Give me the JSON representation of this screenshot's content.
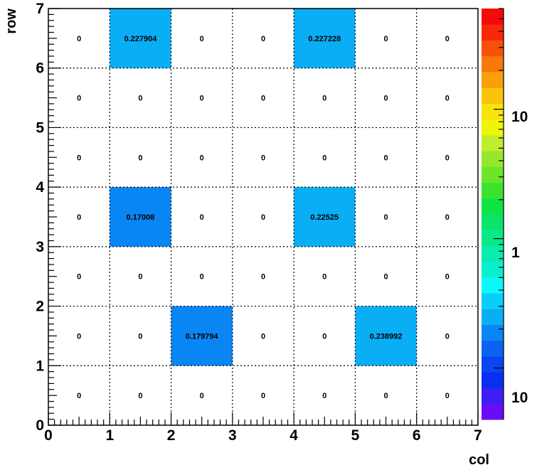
{
  "chart_data": {
    "type": "heatmap",
    "xlabel": "col",
    "ylabel": "row",
    "xlim": [
      0,
      7
    ],
    "ylim": [
      0,
      7
    ],
    "x_ticks": [
      "0",
      "1",
      "2",
      "3",
      "4",
      "5",
      "6",
      "7"
    ],
    "y_ticks": [
      "0",
      "1",
      "2",
      "3",
      "4",
      "5",
      "6",
      "7"
    ],
    "grid": true,
    "values": [
      [
        "0",
        "0",
        "0",
        "0",
        "0",
        "0",
        "0"
      ],
      [
        "0",
        "0",
        "0.179794",
        "0",
        "0",
        "0.238992",
        "0"
      ],
      [
        "0",
        "0",
        "0",
        "0",
        "0",
        "0",
        "0"
      ],
      [
        "0",
        "0.17008",
        "0",
        "0",
        "0.22525",
        "0",
        "0"
      ],
      [
        "0",
        "0",
        "0",
        "0",
        "0",
        "0",
        "0"
      ],
      [
        "0",
        "0",
        "0",
        "0",
        "0",
        "0",
        "0"
      ],
      [
        "0",
        "0.227904",
        "0",
        "0",
        "0.227228",
        "0",
        "0"
      ]
    ],
    "colorbar": {
      "scale": "log",
      "labels": [
        "10",
        "1",
        "10"
      ],
      "palette": [
        "#6A0DF5",
        "#3F1EF4",
        "#0A2EF1",
        "#0A46F0",
        "#0A63F0",
        "#0A86F4",
        "#0AAEF5",
        "#0ACDF8",
        "#0AF8F8",
        "#0AF0CE",
        "#0AEBAE",
        "#0AE88C",
        "#0AE46A",
        "#10E345",
        "#3CE32E",
        "#6AE52A",
        "#96E72E",
        "#C0ED2E",
        "#EDF50A",
        "#F8E40A",
        "#F8C30A",
        "#F89F0A",
        "#F8780A",
        "#F8500A",
        "#F8280A",
        "#F50A0A"
      ]
    }
  }
}
